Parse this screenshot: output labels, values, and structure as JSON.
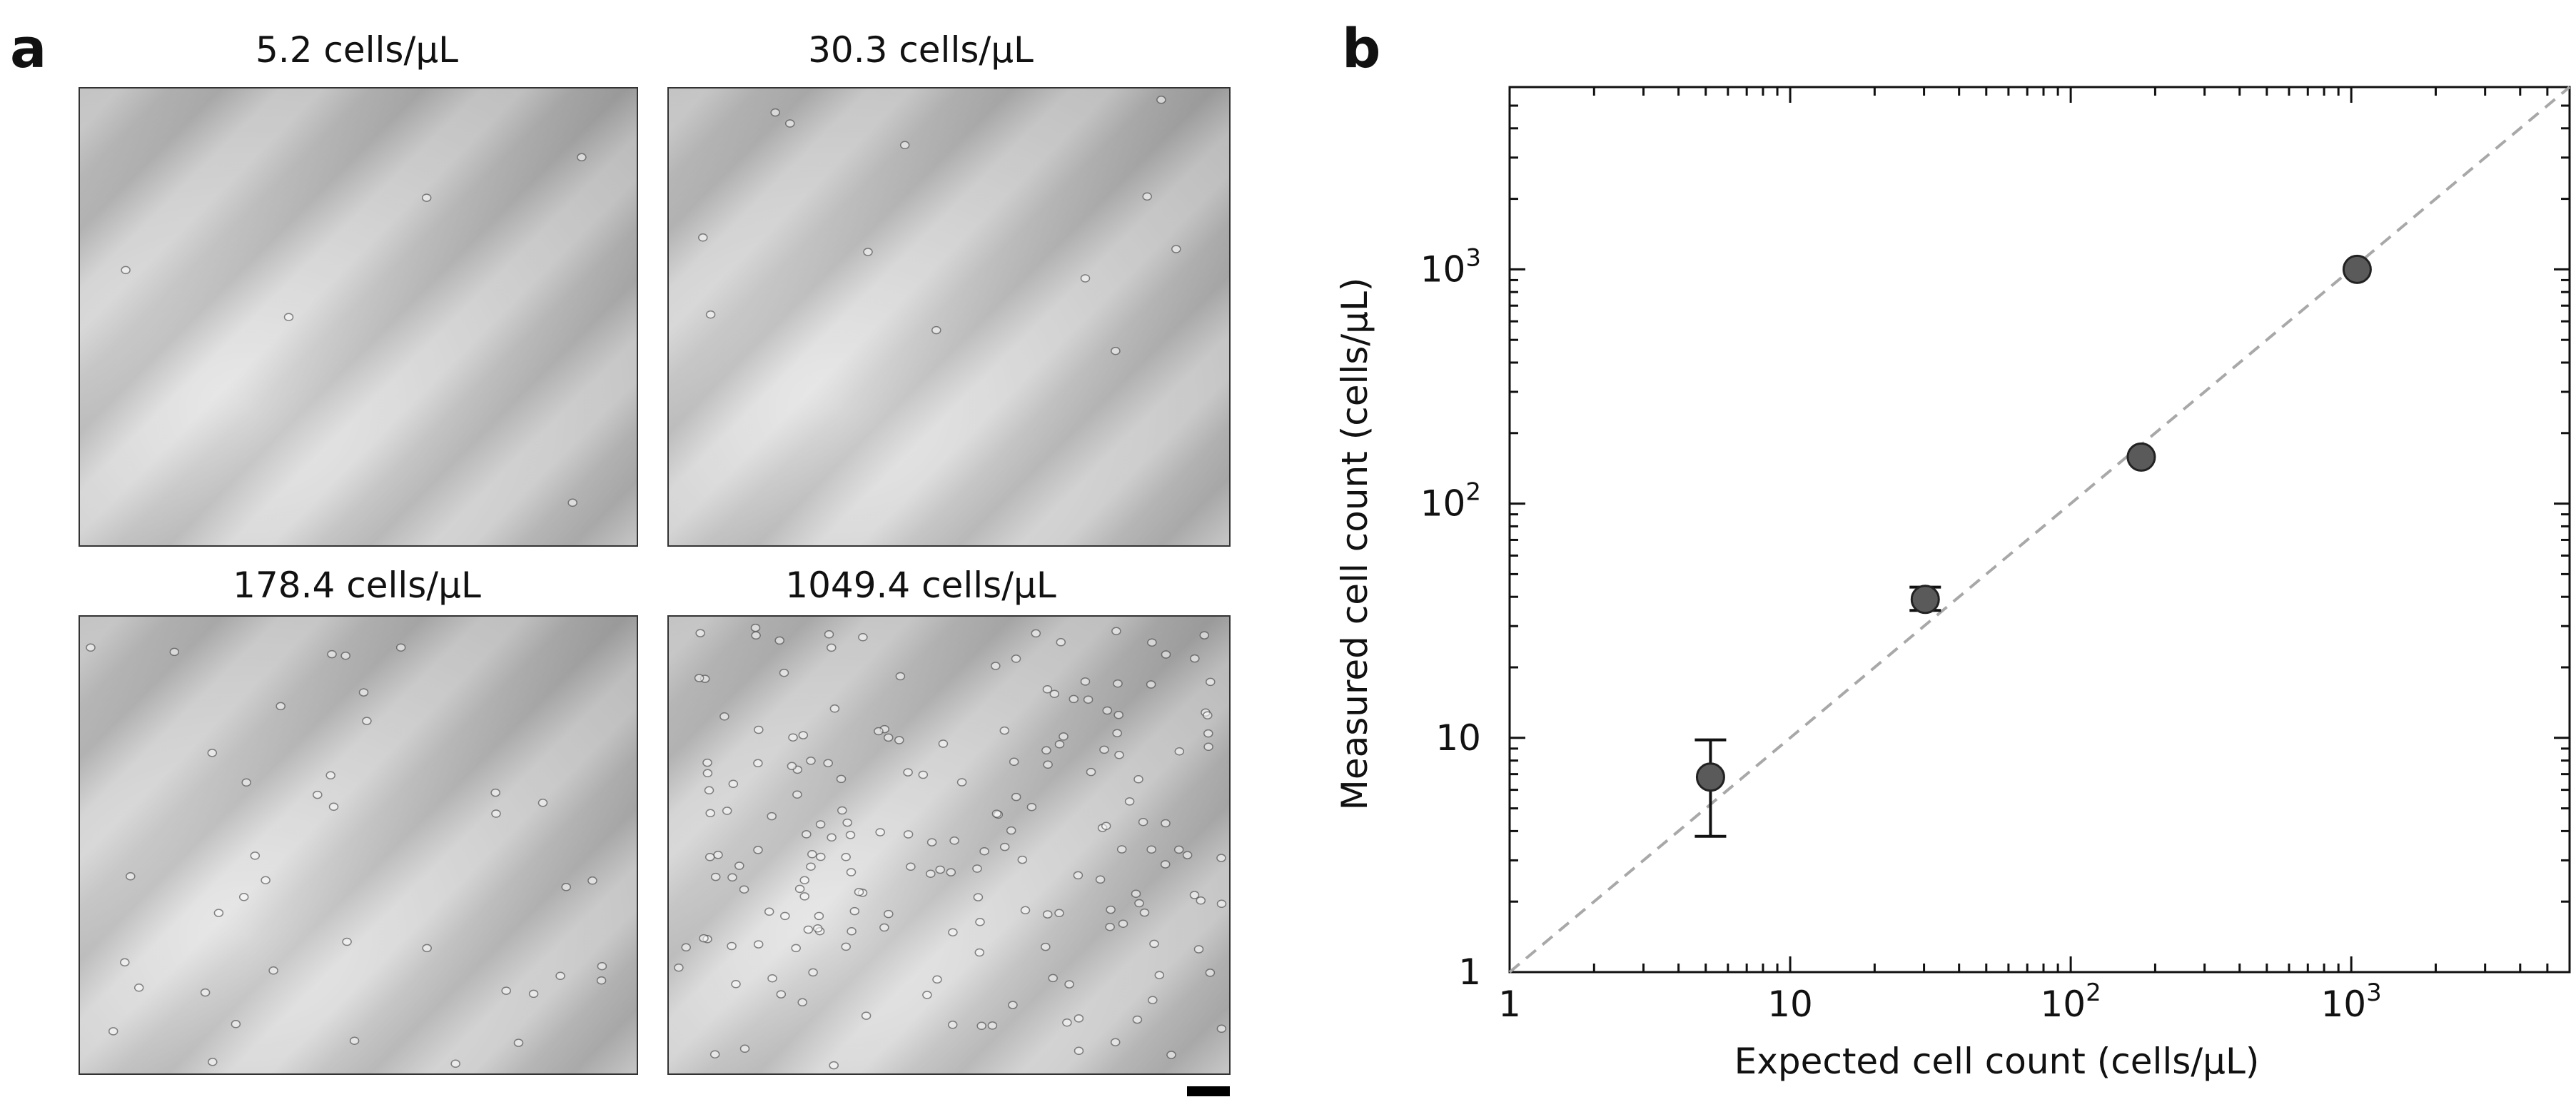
{
  "panel_a": {
    "letter": "a",
    "images": [
      {
        "title": "5.2 cells/µL",
        "cell_count": 5
      },
      {
        "title": "30.3 cells/µL",
        "cell_count": 12
      },
      {
        "title": "178.4 cells/µL",
        "cell_count": 40
      },
      {
        "title": "1049.4 cells/µL",
        "cell_count": 190
      }
    ]
  },
  "panel_b": {
    "letter": "b"
  },
  "chart_data": {
    "type": "scatter",
    "xlabel": "Expected cell count (cells/µL)",
    "ylabel": "Measured cell count (cells/µL)",
    "xscale": "log",
    "yscale": "log",
    "xlim": [
      1,
      6000
    ],
    "ylim": [
      1,
      6000
    ],
    "x_ticks": [
      {
        "value": 1,
        "label": "1"
      },
      {
        "value": 10,
        "label": "10"
      },
      {
        "value": 100,
        "label": "10",
        "sup": "2"
      },
      {
        "value": 1000,
        "label": "10",
        "sup": "3"
      }
    ],
    "y_ticks": [
      {
        "value": 1,
        "label": "1"
      },
      {
        "value": 10,
        "label": "10"
      },
      {
        "value": 100,
        "label": "10",
        "sup": "2"
      },
      {
        "value": 1000,
        "label": "10",
        "sup": "3"
      }
    ],
    "points": [
      {
        "x": 5.2,
        "y": 6.8,
        "y_low": 3.8,
        "y_high": 9.8
      },
      {
        "x": 30.3,
        "y": 39,
        "y_low": 35,
        "y_high": 44
      },
      {
        "x": 178.4,
        "y": 158
      },
      {
        "x": 1049.4,
        "y": 1000
      }
    ],
    "reference_line": {
      "style": "dashed",
      "label": "y = x"
    },
    "marker_color": "#5a5a5a",
    "grid": false
  }
}
